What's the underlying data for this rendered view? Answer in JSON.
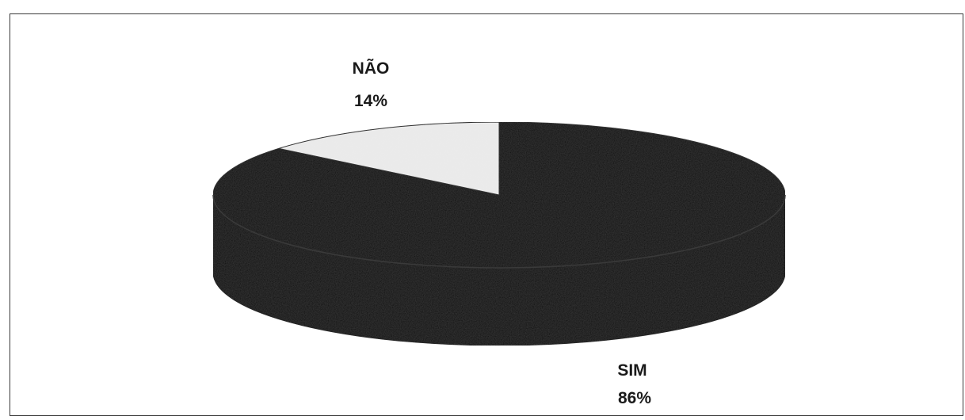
{
  "chart_data": {
    "type": "pie",
    "style": "3d",
    "slices": [
      {
        "label": "SIM",
        "value": 86,
        "value_label": "86%",
        "color": "#0d0d0d"
      },
      {
        "label": "NÃO",
        "value": 14,
        "value_label": "14%",
        "color": "#ececec"
      }
    ]
  }
}
